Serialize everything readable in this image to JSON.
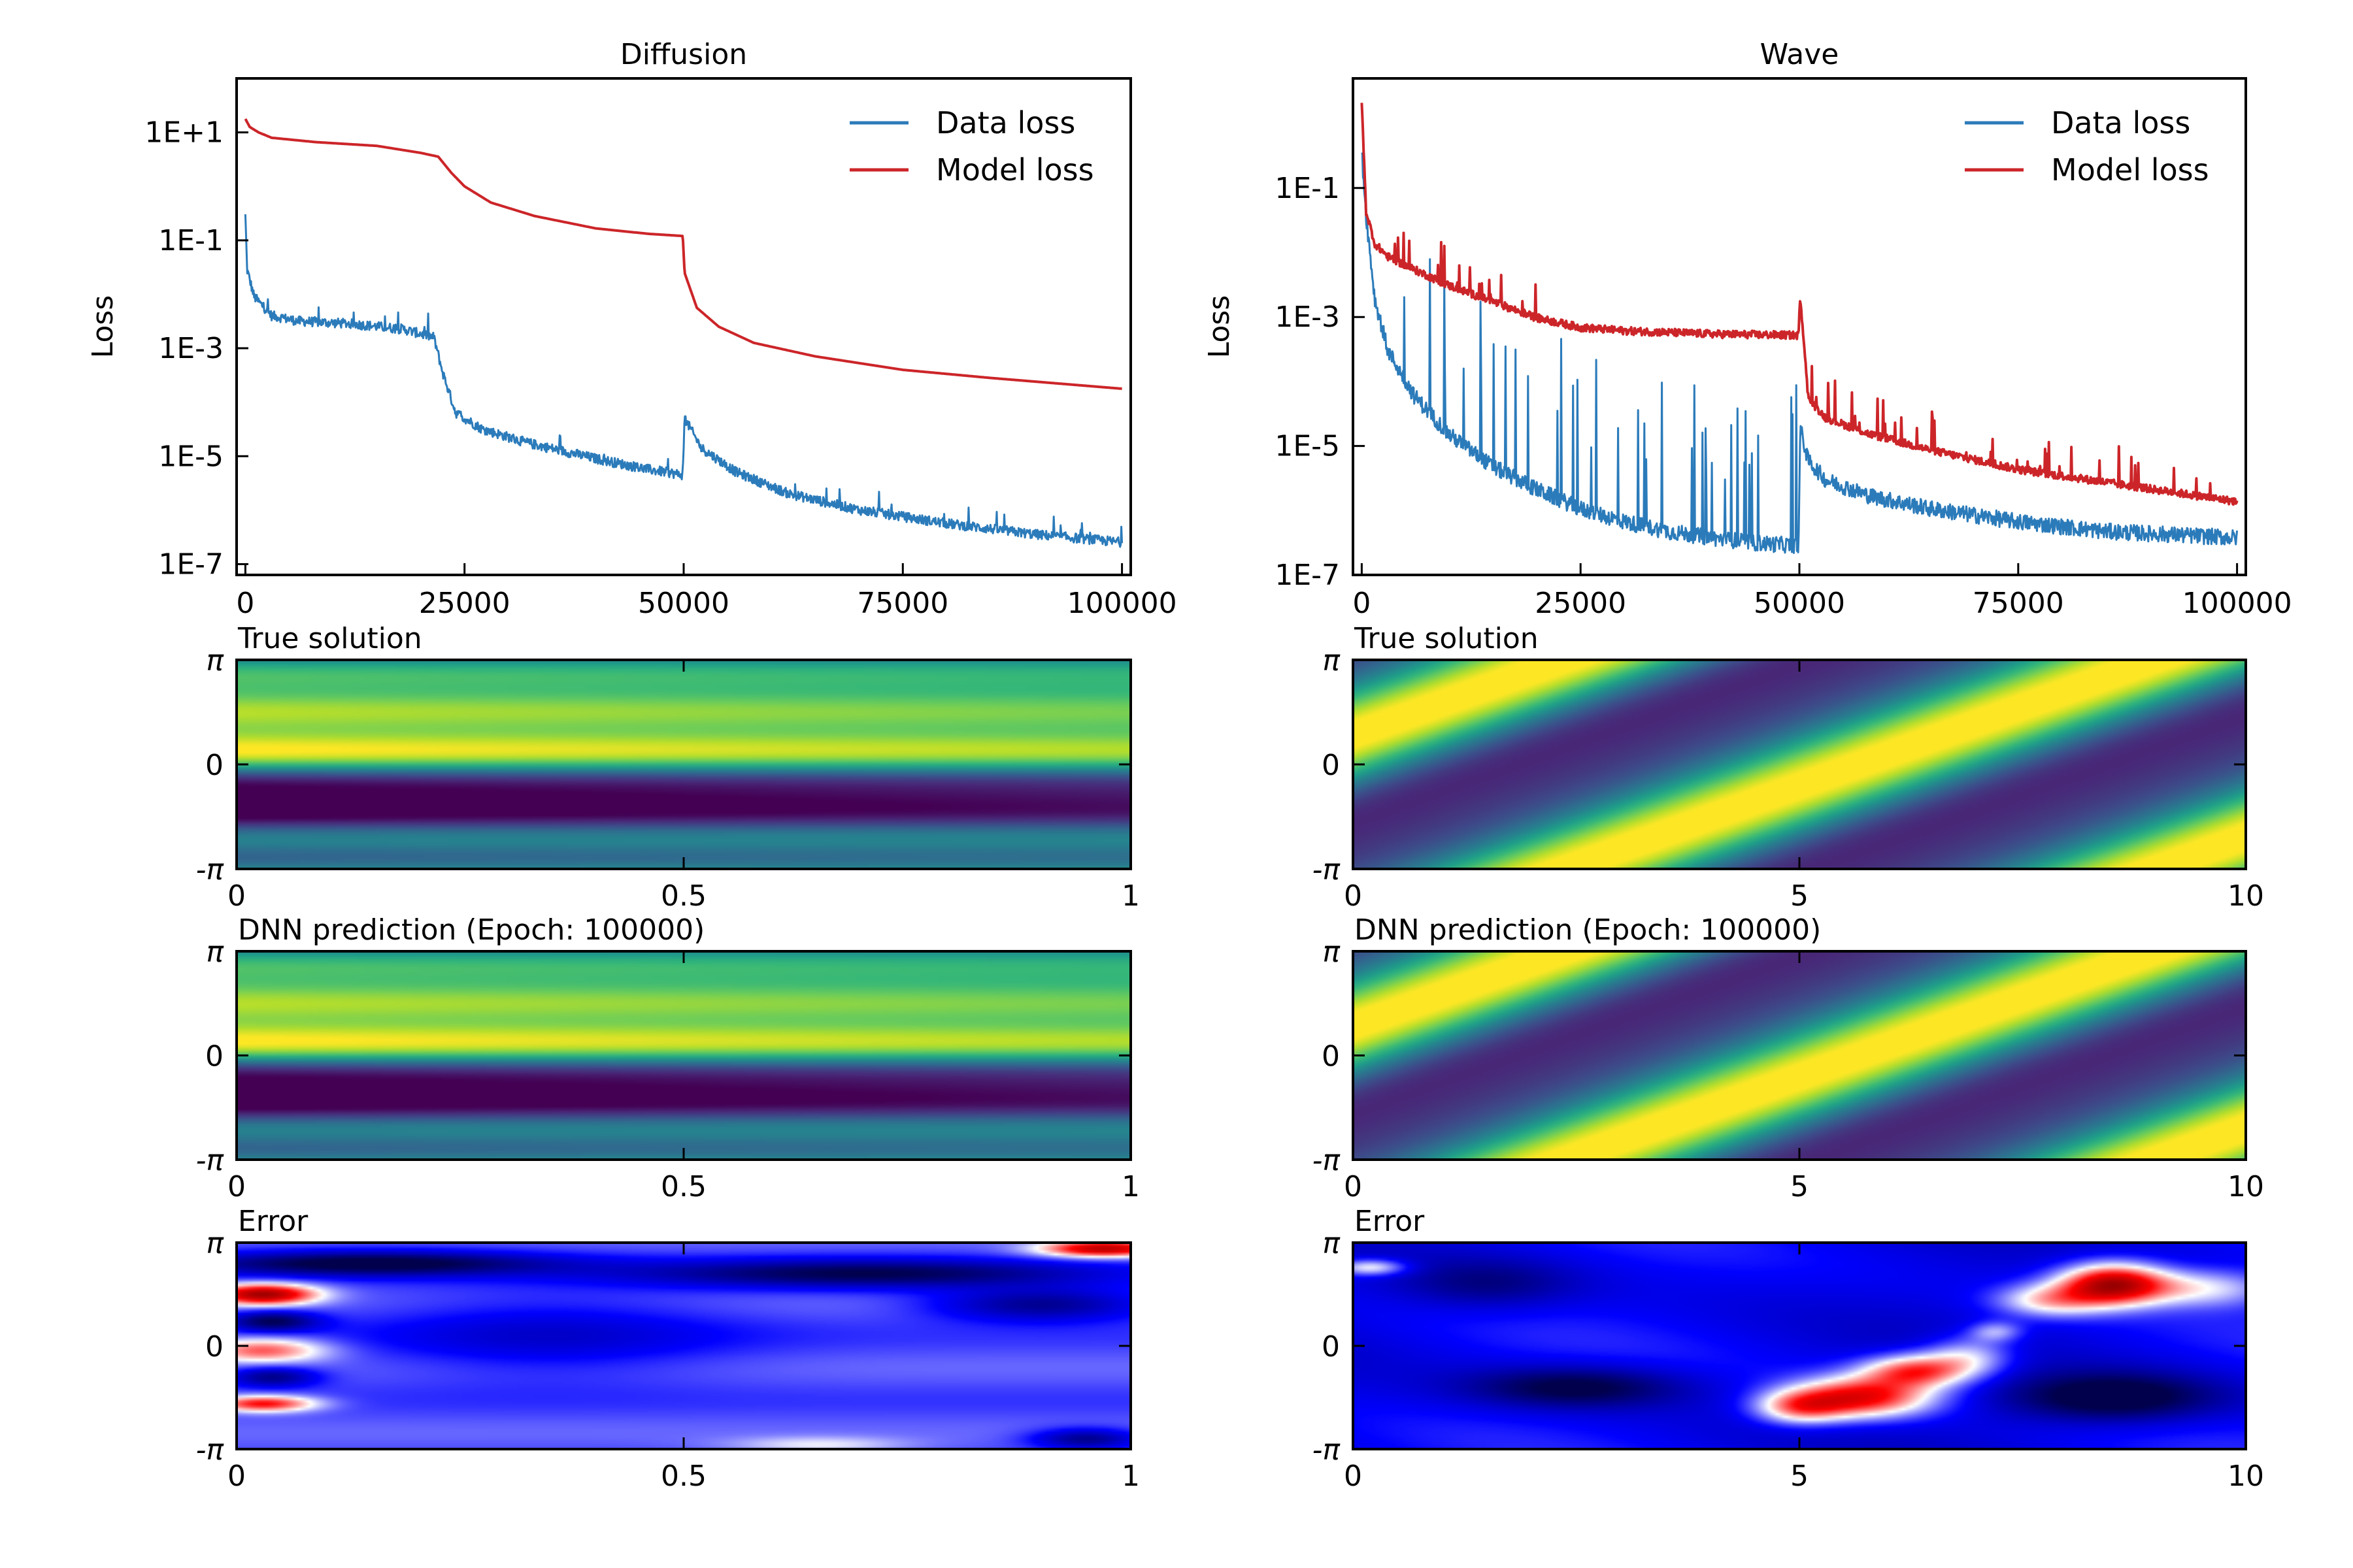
{
  "figure": {
    "columns": [
      {
        "title": "Diffusion"
      },
      {
        "title": "Wave"
      }
    ],
    "panel_titles": {
      "true": "True solution",
      "pred": "DNN prediction (Epoch: 100000)",
      "error": "Error"
    },
    "y_ticks_space": [
      "-π",
      "0",
      "π"
    ]
  },
  "chart_data": [
    {
      "type": "line",
      "title": "Diffusion",
      "ylabel": "Loss",
      "xlabel": "",
      "yscale": "log",
      "xlim": [
        -1000,
        101000
      ],
      "ylim_exp": [
        -7.2,
        2.0
      ],
      "x_ticks": [
        0,
        25000,
        50000,
        75000,
        100000
      ],
      "y_ticks": [
        {
          "exp": 1,
          "label": "1E+1"
        },
        {
          "exp": -1,
          "label": "1E-1"
        },
        {
          "exp": -3,
          "label": "1E-3"
        },
        {
          "exp": -5,
          "label": "1E-5"
        },
        {
          "exp": -7,
          "label": "1E-7"
        }
      ],
      "legend": {
        "placement": "top-right"
      },
      "series": [
        {
          "name": "Data loss",
          "color": "#2b7bba",
          "noise": 0.18,
          "points": [
            [
              0,
              -0.6
            ],
            [
              200,
              -1.6
            ],
            [
              1000,
              -2.1
            ],
            [
              3000,
              -2.45
            ],
            [
              6000,
              -2.55
            ],
            [
              12000,
              -2.6
            ],
            [
              18000,
              -2.7
            ],
            [
              21500,
              -2.85
            ],
            [
              22500,
              -3.5
            ],
            [
              24000,
              -4.25
            ],
            [
              27000,
              -4.55
            ],
            [
              32000,
              -4.8
            ],
            [
              40000,
              -5.1
            ],
            [
              46000,
              -5.3
            ],
            [
              49900,
              -5.4
            ],
            [
              50100,
              -4.35
            ],
            [
              52000,
              -4.9
            ],
            [
              56000,
              -5.35
            ],
            [
              62000,
              -5.75
            ],
            [
              70000,
              -6.05
            ],
            [
              80000,
              -6.3
            ],
            [
              90000,
              -6.5
            ],
            [
              100000,
              -6.65
            ]
          ]
        },
        {
          "name": "Model loss",
          "color": "#cc2529",
          "noise": 0.0,
          "points": [
            [
              0,
              1.25
            ],
            [
              500,
              1.1
            ],
            [
              1500,
              1.0
            ],
            [
              3000,
              0.9
            ],
            [
              8000,
              0.82
            ],
            [
              15000,
              0.75
            ],
            [
              20000,
              0.62
            ],
            [
              22000,
              0.55
            ],
            [
              23500,
              0.25
            ],
            [
              25000,
              0.0
            ],
            [
              28000,
              -0.3
            ],
            [
              33000,
              -0.55
            ],
            [
              40000,
              -0.78
            ],
            [
              46000,
              -0.88
            ],
            [
              49900,
              -0.92
            ],
            [
              50100,
              -1.6
            ],
            [
              51500,
              -2.25
            ],
            [
              54000,
              -2.6
            ],
            [
              58000,
              -2.9
            ],
            [
              65000,
              -3.15
            ],
            [
              75000,
              -3.4
            ],
            [
              85000,
              -3.55
            ],
            [
              100000,
              -3.75
            ]
          ]
        }
      ]
    },
    {
      "type": "line",
      "title": "Wave",
      "ylabel": "Loss",
      "xlabel": "",
      "yscale": "log",
      "xlim": [
        -1000,
        101000
      ],
      "ylim_exp": [
        -7.0,
        0.7
      ],
      "x_ticks": [
        0,
        25000,
        50000,
        75000,
        100000
      ],
      "y_ticks": [
        {
          "exp": -1,
          "label": "1E-1"
        },
        {
          "exp": -3,
          "label": "1E-3"
        },
        {
          "exp": -5,
          "label": "1E-5"
        },
        {
          "exp": -7,
          "label": "1E-7"
        }
      ],
      "legend": {
        "placement": "top-right"
      },
      "series": [
        {
          "name": "Data loss",
          "color": "#2b7bba",
          "noise": 0.25,
          "points": [
            [
              0,
              -0.5
            ],
            [
              500,
              -1.5
            ],
            [
              1500,
              -2.8
            ],
            [
              3000,
              -3.6
            ],
            [
              6000,
              -4.3
            ],
            [
              10000,
              -4.9
            ],
            [
              15000,
              -5.4
            ],
            [
              20000,
              -5.75
            ],
            [
              25000,
              -6.05
            ],
            [
              30000,
              -6.25
            ],
            [
              35000,
              -6.4
            ],
            [
              40000,
              -6.5
            ],
            [
              45000,
              -6.58
            ],
            [
              49900,
              -6.62
            ],
            [
              50100,
              -4.8
            ],
            [
              51000,
              -5.3
            ],
            [
              53000,
              -5.6
            ],
            [
              58000,
              -5.85
            ],
            [
              65000,
              -6.05
            ],
            [
              75000,
              -6.25
            ],
            [
              85000,
              -6.4
            ],
            [
              100000,
              -6.5
            ]
          ]
        },
        {
          "name": "Model loss",
          "color": "#cc2529",
          "noise": 0.12,
          "points": [
            [
              0,
              0.3
            ],
            [
              500,
              -1.4
            ],
            [
              1500,
              -1.9
            ],
            [
              3000,
              -2.1
            ],
            [
              6000,
              -2.3
            ],
            [
              10000,
              -2.55
            ],
            [
              15000,
              -2.8
            ],
            [
              20000,
              -3.05
            ],
            [
              25000,
              -3.2
            ],
            [
              30000,
              -3.25
            ],
            [
              40000,
              -3.3
            ],
            [
              49900,
              -3.32
            ],
            [
              50100,
              -2.7
            ],
            [
              51000,
              -4.3
            ],
            [
              53000,
              -4.6
            ],
            [
              58000,
              -4.85
            ],
            [
              65000,
              -5.1
            ],
            [
              75000,
              -5.4
            ],
            [
              85000,
              -5.6
            ],
            [
              100000,
              -5.9
            ]
          ]
        }
      ]
    },
    {
      "type": "heatmap",
      "title": "True solution",
      "colormap": "viridis",
      "field": "diffusion",
      "x_range": [
        0,
        1
      ],
      "y_range": [
        "-π",
        "π"
      ],
      "x_ticks": [
        "0",
        "0.5",
        "1"
      ]
    },
    {
      "type": "heatmap",
      "title": "True solution",
      "colormap": "viridis",
      "field": "wave",
      "x_range": [
        0,
        10
      ],
      "y_range": [
        "-π",
        "π"
      ],
      "x_ticks": [
        "0",
        "5",
        "10"
      ]
    },
    {
      "type": "heatmap",
      "title": "DNN prediction (Epoch: 100000)",
      "colormap": "viridis",
      "field": "diffusion",
      "x_range": [
        0,
        1
      ],
      "y_range": [
        "-π",
        "π"
      ],
      "x_ticks": [
        "0",
        "0.5",
        "1"
      ]
    },
    {
      "type": "heatmap",
      "title": "DNN prediction (Epoch: 100000)",
      "colormap": "viridis",
      "field": "wave",
      "x_range": [
        0,
        10
      ],
      "y_range": [
        "-π",
        "π"
      ],
      "x_ticks": [
        "0",
        "5",
        "10"
      ]
    },
    {
      "type": "heatmap",
      "title": "Error",
      "colormap": "seismic",
      "field": "diffusion-error",
      "x_range": [
        0,
        1
      ],
      "y_range": [
        "-π",
        "π"
      ],
      "x_ticks": [
        "0",
        "0.5",
        "1"
      ]
    },
    {
      "type": "heatmap",
      "title": "Error",
      "colormap": "seismic",
      "field": "wave-error",
      "x_range": [
        0,
        10
      ],
      "y_range": [
        "-π",
        "π"
      ],
      "x_ticks": [
        "0",
        "5",
        "10"
      ]
    }
  ]
}
